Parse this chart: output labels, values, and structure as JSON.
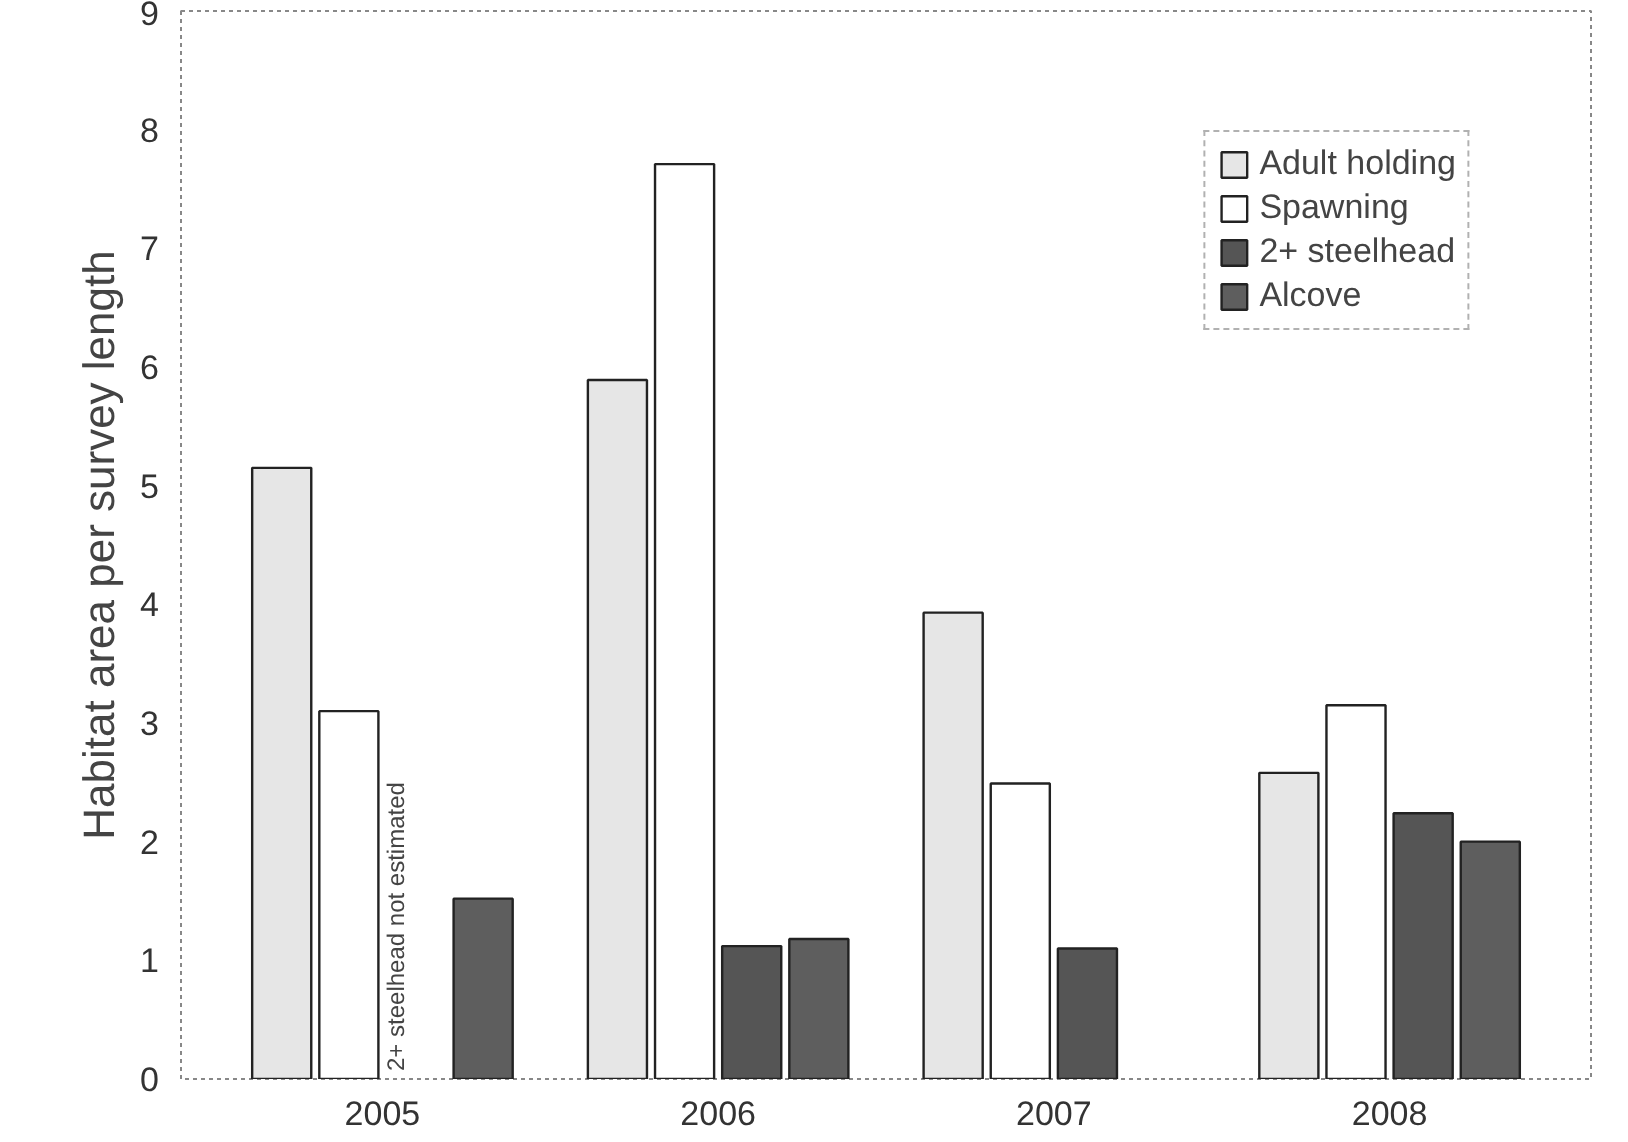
{
  "chart_data": {
    "type": "bar",
    "ylabel": "Habitat area per survey length",
    "categories": [
      "2005",
      "2006",
      "2007",
      "2008"
    ],
    "series": [
      {
        "name": "Adult holding",
        "color": "#e6e6e6",
        "values": [
          5.15,
          5.89,
          3.93,
          2.58
        ]
      },
      {
        "name": "Spawning",
        "color": "#ffffff",
        "values": [
          3.1,
          7.71,
          2.49,
          3.15
        ]
      },
      {
        "name": "2+ steelhead",
        "color": "#555555",
        "values": [
          null,
          1.12,
          1.1,
          2.24
        ]
      },
      {
        "name": "Alcove",
        "color": "#5e5e5e",
        "values": [
          1.52,
          1.18,
          null,
          2.0
        ]
      }
    ],
    "ylim": [
      0,
      9
    ],
    "yticks": [
      0,
      1,
      2,
      3,
      4,
      5,
      6,
      7,
      8,
      9
    ],
    "grid": false,
    "legend": "top right",
    "annotations": [
      {
        "text": "2+ steelhead not estimated",
        "x": "2005",
        "y": 0
      }
    ]
  }
}
